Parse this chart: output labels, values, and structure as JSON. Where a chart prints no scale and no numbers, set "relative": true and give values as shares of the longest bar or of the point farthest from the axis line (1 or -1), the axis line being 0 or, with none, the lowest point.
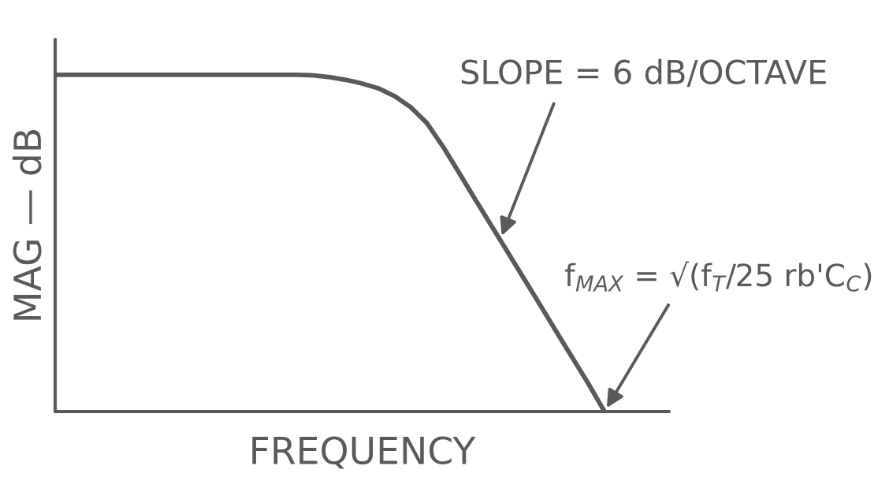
{
  "chart_data": {
    "type": "line",
    "relative": true,
    "tick_labels": false,
    "xlabel": "FREQUENCY",
    "ylabel": "MAG — dB",
    "categories": [
      null,
      null,
      null,
      null,
      null,
      null,
      null,
      null,
      null,
      null,
      null,
      null,
      null,
      null,
      null,
      null,
      null,
      null,
      null,
      null,
      null,
      null,
      null,
      null,
      null,
      null,
      null,
      null,
      null,
      null,
      null,
      null,
      null,
      null,
      null,
      null,
      null,
      null,
      null
    ],
    "series": [
      {
        "color": "#5a5a5a",
        "values": [
          1,
          1,
          1,
          1,
          1,
          1,
          1,
          1,
          1,
          1,
          1,
          1,
          1,
          1,
          1,
          1,
          0.998,
          0.993,
          0.985,
          0.974,
          0.96,
          0.937,
          0.904,
          0.857,
          0.787,
          0.709,
          0.63,
          0.552,
          0.474,
          0.396,
          0.318,
          0.239,
          0.161,
          0.083,
          0,
          null,
          null,
          null,
          null
        ]
      }
    ],
    "annotations": [
      "SLOPE = 6 dB/OCTAVE",
      "f$_{MAX}$ = √(f$_{T}$/25 rb'C$_{C}$)"
    ]
  }
}
